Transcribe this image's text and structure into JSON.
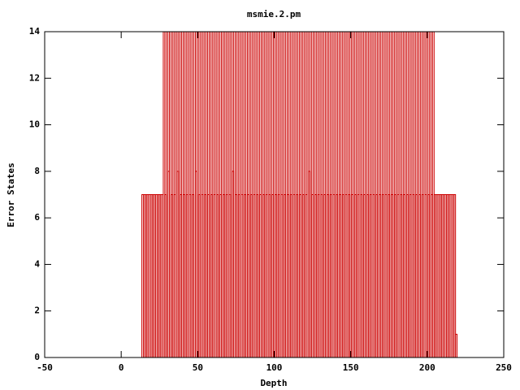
{
  "chart_data": {
    "type": "boxes",
    "title": "msmie.2.pm",
    "x_label": "Depth",
    "y_label": "Error States",
    "color": "#cc0000",
    "xlim": [
      -50,
      250
    ],
    "xticks": [
      -50,
      0,
      50,
      100,
      150,
      200,
      250
    ],
    "ylim": [
      0,
      14
    ],
    "yticks": [
      0,
      2,
      4,
      6,
      8,
      10,
      12,
      14
    ],
    "x": [
      14,
      15,
      16,
      17,
      18,
      19,
      20,
      21,
      22,
      23,
      24,
      25,
      26,
      27,
      28,
      29,
      30,
      31,
      32,
      33,
      34,
      35,
      36,
      37,
      38,
      39,
      40,
      41,
      42,
      43,
      44,
      45,
      46,
      47,
      48,
      49,
      50,
      51,
      52,
      53,
      54,
      55,
      56,
      57,
      58,
      59,
      60,
      61,
      62,
      63,
      64,
      65,
      66,
      67,
      68,
      69,
      70,
      71,
      72,
      73,
      74,
      75,
      76,
      77,
      78,
      79,
      80,
      81,
      82,
      83,
      84,
      85,
      86,
      87,
      88,
      89,
      90,
      91,
      92,
      93,
      94,
      95,
      96,
      97,
      98,
      99,
      100,
      101,
      102,
      103,
      104,
      105,
      106,
      107,
      108,
      109,
      110,
      111,
      112,
      113,
      114,
      115,
      116,
      117,
      118,
      119,
      120,
      121,
      122,
      123,
      124,
      125,
      126,
      127,
      128,
      129,
      130,
      131,
      132,
      133,
      134,
      135,
      136,
      137,
      138,
      139,
      140,
      141,
      142,
      143,
      144,
      145,
      146,
      147,
      148,
      149,
      150,
      151,
      152,
      153,
      154,
      155,
      156,
      157,
      158,
      159,
      160,
      161,
      162,
      163,
      164,
      165,
      166,
      167,
      168,
      169,
      170,
      171,
      172,
      173,
      174,
      175,
      176,
      177,
      178,
      179,
      180,
      181,
      182,
      183,
      184,
      185,
      186,
      187,
      188,
      189,
      190,
      191,
      192,
      193,
      194,
      195,
      196,
      197,
      198,
      199,
      200,
      201,
      202,
      203,
      204,
      205,
      206,
      207,
      208,
      209,
      210,
      211,
      212,
      213,
      214,
      215,
      216,
      217,
      218,
      219
    ],
    "values": [
      7,
      7,
      7,
      7,
      7,
      7,
      7,
      7,
      7,
      7,
      7,
      7,
      7,
      7,
      14,
      7,
      14,
      8,
      14,
      7,
      14,
      7,
      14,
      8,
      14,
      7,
      14,
      7,
      14,
      7,
      14,
      7,
      14,
      7,
      14,
      8,
      14,
      7,
      14,
      7,
      14,
      7,
      14,
      7,
      14,
      7,
      14,
      7,
      14,
      7,
      14,
      7,
      14,
      7,
      14,
      7,
      14,
      7,
      14,
      8,
      14,
      7,
      14,
      7,
      14,
      7,
      14,
      7,
      14,
      7,
      14,
      7,
      14,
      7,
      14,
      7,
      14,
      7,
      14,
      7,
      14,
      7,
      14,
      7,
      14,
      7,
      14,
      7,
      14,
      7,
      14,
      7,
      14,
      7,
      14,
      7,
      14,
      7,
      14,
      7,
      14,
      7,
      14,
      7,
      14,
      7,
      14,
      7,
      14,
      8,
      14,
      7,
      14,
      7,
      14,
      7,
      14,
      7,
      14,
      7,
      14,
      7,
      14,
      7,
      14,
      7,
      14,
      7,
      14,
      7,
      14,
      7,
      14,
      7,
      14,
      7,
      14,
      7,
      14,
      7,
      14,
      7,
      14,
      7,
      14,
      7,
      14,
      7,
      14,
      7,
      14,
      7,
      14,
      7,
      14,
      7,
      14,
      7,
      14,
      7,
      14,
      7,
      14,
      7,
      14,
      7,
      14,
      7,
      14,
      7,
      14,
      7,
      14,
      7,
      14,
      7,
      14,
      7,
      14,
      7,
      14,
      7,
      14,
      7,
      14,
      7,
      14,
      7,
      14,
      7,
      14,
      7,
      7,
      7,
      7,
      7,
      7,
      7,
      7,
      7,
      7,
      7,
      7,
      7,
      7,
      1
    ]
  }
}
